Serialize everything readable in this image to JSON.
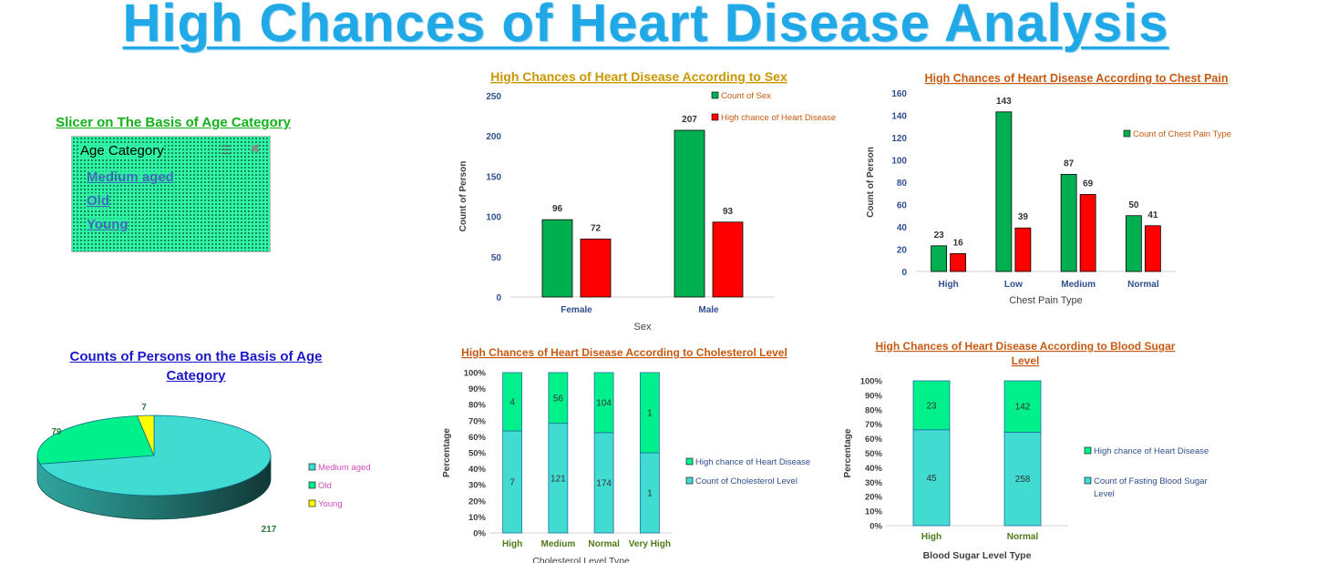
{
  "page": {
    "title": "High Chances of Heart Disease Analysis"
  },
  "colors": {
    "title": "#21a8e7",
    "green": "#00b050",
    "red": "#ff0000",
    "mint": "#00f08c",
    "turquoise": "#40dcd2",
    "yellow": "#ffff00",
    "gold_title": "#c99700",
    "brown_title": "#c65a11",
    "blue_title": "#1a18c9"
  },
  "slicer": {
    "title": "Slicer on The Basis of Age Category",
    "header": "Age Category",
    "multiselect_icon": "multi-select-icon",
    "clear_icon": "clear-filter-icon",
    "items": [
      "Medium aged",
      "Old",
      "Young"
    ]
  },
  "chart_data": [
    {
      "id": "sex",
      "type": "bar",
      "title": "High Chances of Heart Disease According to Sex",
      "categories": [
        "Female",
        "Male"
      ],
      "series": [
        {
          "name": "Count of Sex",
          "values": [
            96,
            207
          ],
          "color": "#00b050"
        },
        {
          "name": "High chance of Heart Disease",
          "values": [
            72,
            93
          ],
          "color": "#ff0000"
        }
      ],
      "xlabel": "Sex",
      "ylabel": "Count of Person",
      "ylim": [
        0,
        250
      ],
      "yticks": [
        "0",
        "50",
        "100",
        "150",
        "200",
        "250"
      ],
      "legend": "top-right",
      "grid": false
    },
    {
      "id": "chest",
      "type": "bar",
      "title": "High Chances of Heart Disease According to  Chest Pain",
      "categories": [
        "High",
        "Low",
        "Medium",
        "Normal"
      ],
      "series": [
        {
          "name": "Count of Chest Pain Type",
          "values": [
            23,
            143,
            87,
            50
          ],
          "color": "#00b050"
        },
        {
          "name": "",
          "values": [
            16,
            39,
            69,
            41
          ],
          "color": "#ff0000"
        }
      ],
      "xlabel": "Chest Pain Type",
      "ylabel": "Count of Person",
      "ylim": [
        0,
        160
      ],
      "yticks": [
        "0",
        "20",
        "40",
        "60",
        "80",
        "100",
        "120",
        "140",
        "160"
      ],
      "legend": "right",
      "grid": false
    },
    {
      "id": "age",
      "type": "pie",
      "title": "Counts of Persons on the Basis of Age Category",
      "categories": [
        "Medium aged",
        "Old",
        "Young"
      ],
      "values": [
        217,
        79,
        7
      ],
      "colors": [
        "#40dcd2",
        "#00f08c",
        "#ffff00"
      ],
      "legend": "right"
    },
    {
      "id": "chol",
      "type": "bar",
      "stacked": "percent",
      "title": "High Chances of Heart Disease According to Cholesterol Level",
      "categories": [
        "High",
        "Medium",
        "Normal",
        "Very High"
      ],
      "series": [
        {
          "name": "Count of Cholesterol Level",
          "values": [
            7,
            121,
            174,
            1
          ],
          "color": "#40dcd2"
        },
        {
          "name": "High chance of Heart Disease",
          "values": [
            4,
            56,
            104,
            1
          ],
          "color": "#00f08c"
        }
      ],
      "xlabel": "Cholesterol Level Type",
      "ylabel": "Percentage",
      "ylim": [
        0,
        100
      ],
      "yticks": [
        "0%",
        "10%",
        "20%",
        "30%",
        "40%",
        "50%",
        "60%",
        "70%",
        "80%",
        "90%",
        "100%"
      ],
      "legend": "right",
      "grid": false
    },
    {
      "id": "sugar",
      "type": "bar",
      "stacked": "percent",
      "title": "High Chances of Heart Disease According to Blood Sugar Level",
      "categories": [
        "High",
        "Normal"
      ],
      "series": [
        {
          "name": "Count of Fasting Blood Sugar Level",
          "values": [
            45,
            258
          ],
          "color": "#40dcd2"
        },
        {
          "name": "High chance of Heart Disease",
          "values": [
            23,
            142
          ],
          "color": "#00f08c"
        }
      ],
      "xlabel": "Blood Sugar Level Type",
      "ylabel": "Percentage",
      "ylim": [
        0,
        100
      ],
      "yticks": [
        "0%",
        "10%",
        "20%",
        "30%",
        "40%",
        "50%",
        "60%",
        "70%",
        "80%",
        "90%",
        "100%"
      ],
      "legend": "right",
      "grid": false
    }
  ]
}
